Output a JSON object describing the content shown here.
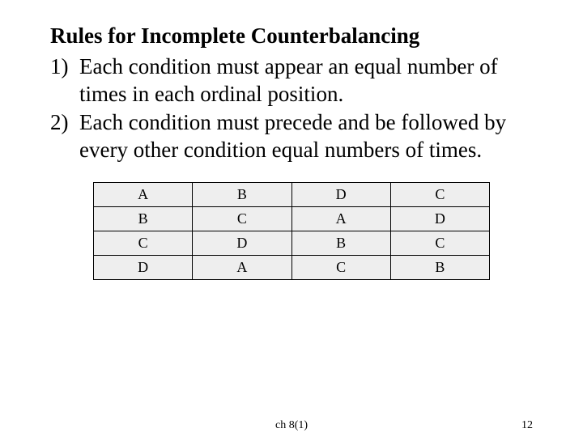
{
  "title": "Rules for Incomplete Counterbalancing",
  "rules": [
    {
      "num": "1)",
      "text": "Each condition must appear an equal number of times in each ordinal position."
    },
    {
      "num": "2)",
      "text": "Each condition must precede and be followed by every other condition equal numbers of times."
    }
  ],
  "table": {
    "rows": [
      [
        "A",
        "B",
        "D",
        "C"
      ],
      [
        "B",
        "C",
        "A",
        "D"
      ],
      [
        "C",
        "D",
        "B",
        "C"
      ],
      [
        "D",
        "A",
        "C",
        "B"
      ]
    ],
    "cell_background": "#eeeeee",
    "border_color": "#000000",
    "font_size": 18
  },
  "footer": {
    "center": "ch 8(1)",
    "page": "12"
  },
  "colors": {
    "background": "#ffffff",
    "text": "#000000"
  }
}
